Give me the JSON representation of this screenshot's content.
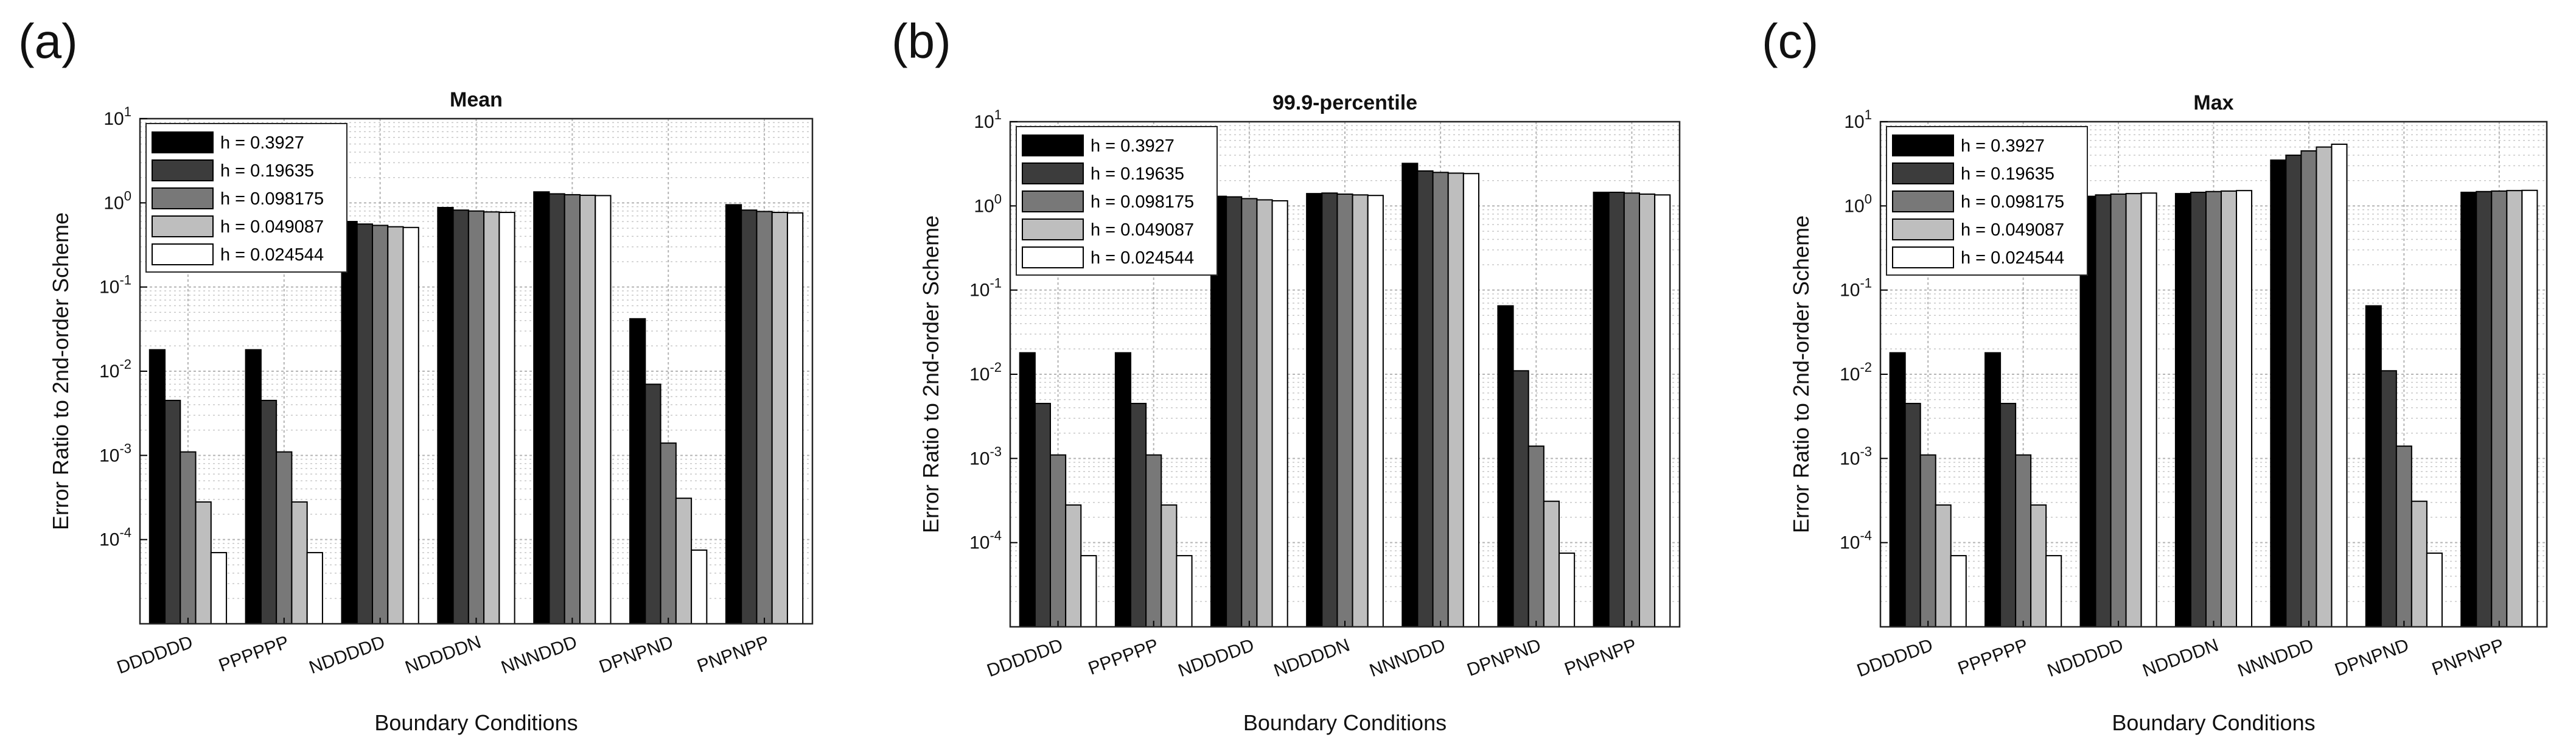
{
  "figure": {
    "panels": [
      "(a)",
      "(b)",
      "(c)"
    ]
  },
  "chart_data": [
    {
      "type": "bar",
      "panel": "(a)",
      "title": "Mean",
      "xlabel": "Boundary Conditions",
      "ylabel": "Error Ratio to 2nd-order Scheme",
      "yscale": "log",
      "ylim": [
        1e-05,
        10
      ],
      "yticks": [
        {
          "value": 0.0001,
          "mantissa": "10",
          "exp": "-4"
        },
        {
          "value": 0.001,
          "mantissa": "10",
          "exp": "-3"
        },
        {
          "value": 0.01,
          "mantissa": "10",
          "exp": "-2"
        },
        {
          "value": 0.1,
          "mantissa": "10",
          "exp": "-1"
        },
        {
          "value": 1,
          "mantissa": "10",
          "exp": "0"
        },
        {
          "value": 10,
          "mantissa": "10",
          "exp": "1"
        }
      ],
      "grid": true,
      "legend_position": "top-left",
      "categories": [
        "DDDDDD",
        "PPPPPP",
        "NDDDDD",
        "NDDDDN",
        "NNNDDD",
        "DPNPND",
        "PNPNPP"
      ],
      "series": [
        {
          "name": "h = 0.3927",
          "color": "#000000",
          "values": [
            0.018,
            0.018,
            0.6,
            0.88,
            1.35,
            0.042,
            0.95
          ]
        },
        {
          "name": "h = 0.19635",
          "color": "#3c3c3c",
          "values": [
            0.0045,
            0.0045,
            0.56,
            0.82,
            1.28,
            0.007,
            0.82
          ]
        },
        {
          "name": "h = 0.098175",
          "color": "#787878",
          "values": [
            0.0011,
            0.0011,
            0.54,
            0.8,
            1.25,
            0.0014,
            0.79
          ]
        },
        {
          "name": "h = 0.049087",
          "color": "#bebebe",
          "values": [
            0.00028,
            0.00028,
            0.52,
            0.78,
            1.23,
            0.00031,
            0.77
          ]
        },
        {
          "name": "h = 0.024544",
          "color": "#ffffff",
          "values": [
            7e-05,
            7e-05,
            0.51,
            0.77,
            1.22,
            7.5e-05,
            0.76
          ]
        }
      ]
    },
    {
      "type": "bar",
      "panel": "(b)",
      "title": "99.9-percentile",
      "xlabel": "Boundary Conditions",
      "ylabel": "Error Ratio to 2nd-order Scheme",
      "yscale": "log",
      "ylim": [
        1e-05,
        10
      ],
      "yticks": [
        {
          "value": 0.0001,
          "mantissa": "10",
          "exp": "-4"
        },
        {
          "value": 0.001,
          "mantissa": "10",
          "exp": "-3"
        },
        {
          "value": 0.01,
          "mantissa": "10",
          "exp": "-2"
        },
        {
          "value": 0.1,
          "mantissa": "10",
          "exp": "-1"
        },
        {
          "value": 1,
          "mantissa": "10",
          "exp": "0"
        },
        {
          "value": 10,
          "mantissa": "10",
          "exp": "1"
        }
      ],
      "grid": true,
      "legend_position": "top-left",
      "categories": [
        "DDDDDD",
        "PPPPPP",
        "NDDDDD",
        "NDDDDN",
        "NNNDDD",
        "DPNPND",
        "PNPNPP"
      ],
      "series": [
        {
          "name": "h = 0.3927",
          "color": "#000000",
          "values": [
            0.018,
            0.018,
            1.3,
            1.4,
            3.2,
            0.065,
            1.45
          ]
        },
        {
          "name": "h = 0.19635",
          "color": "#3c3c3c",
          "values": [
            0.0045,
            0.0045,
            1.28,
            1.42,
            2.6,
            0.011,
            1.45
          ]
        },
        {
          "name": "h = 0.098175",
          "color": "#787878",
          "values": [
            0.0011,
            0.0011,
            1.22,
            1.38,
            2.5,
            0.0014,
            1.42
          ]
        },
        {
          "name": "h = 0.049087",
          "color": "#bebebe",
          "values": [
            0.00028,
            0.00028,
            1.18,
            1.35,
            2.45,
            0.00031,
            1.38
          ]
        },
        {
          "name": "h = 0.024544",
          "color": "#ffffff",
          "values": [
            7e-05,
            7e-05,
            1.15,
            1.33,
            2.42,
            7.5e-05,
            1.35
          ]
        }
      ]
    },
    {
      "type": "bar",
      "panel": "(c)",
      "title": "Max",
      "xlabel": "Boundary Conditions",
      "ylabel": "Error Ratio to 2nd-order Scheme",
      "yscale": "log",
      "ylim": [
        1e-05,
        10
      ],
      "yticks": [
        {
          "value": 0.0001,
          "mantissa": "10",
          "exp": "-4"
        },
        {
          "value": 0.001,
          "mantissa": "10",
          "exp": "-3"
        },
        {
          "value": 0.01,
          "mantissa": "10",
          "exp": "-2"
        },
        {
          "value": 0.1,
          "mantissa": "10",
          "exp": "-1"
        },
        {
          "value": 1,
          "mantissa": "10",
          "exp": "0"
        },
        {
          "value": 10,
          "mantissa": "10",
          "exp": "1"
        }
      ],
      "grid": true,
      "legend_position": "top-left",
      "categories": [
        "DDDDDD",
        "PPPPPP",
        "NDDDDD",
        "NDDDDN",
        "NNNDDD",
        "DPNPND",
        "PNPNPP"
      ],
      "series": [
        {
          "name": "h = 0.3927",
          "color": "#000000",
          "values": [
            0.018,
            0.018,
            1.3,
            1.4,
            3.5,
            0.065,
            1.45
          ]
        },
        {
          "name": "h = 0.19635",
          "color": "#3c3c3c",
          "values": [
            0.0045,
            0.0045,
            1.35,
            1.45,
            4.0,
            0.011,
            1.48
          ]
        },
        {
          "name": "h = 0.098175",
          "color": "#787878",
          "values": [
            0.0011,
            0.0011,
            1.38,
            1.48,
            4.5,
            0.0014,
            1.5
          ]
        },
        {
          "name": "h = 0.049087",
          "color": "#bebebe",
          "values": [
            0.00028,
            0.00028,
            1.4,
            1.5,
            5.0,
            0.00031,
            1.52
          ]
        },
        {
          "name": "h = 0.024544",
          "color": "#ffffff",
          "values": [
            7e-05,
            7e-05,
            1.42,
            1.52,
            5.4,
            7.5e-05,
            1.53
          ]
        }
      ]
    }
  ]
}
